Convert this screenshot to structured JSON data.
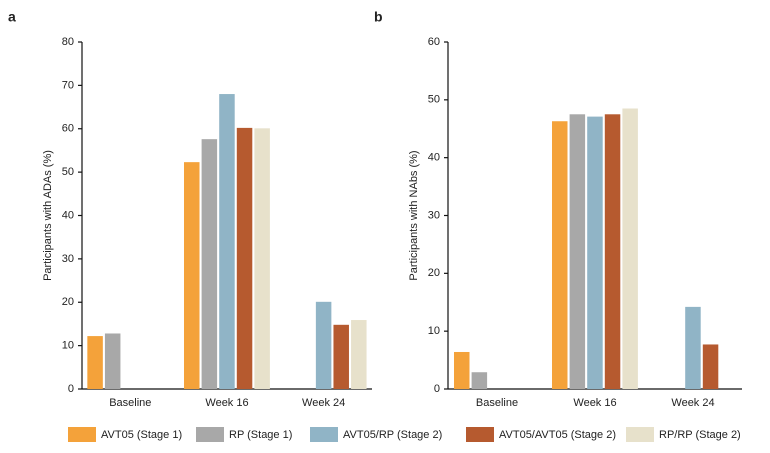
{
  "chart_data": [
    {
      "type": "bar",
      "panel": "a",
      "y_label": "Participants with ADAs (%)",
      "categories": [
        "Baseline",
        "Week 16",
        "Week 24"
      ],
      "ylim": [
        0,
        80
      ],
      "yticks": [
        0,
        10,
        20,
        30,
        40,
        50,
        60,
        70,
        80
      ],
      "series": [
        {
          "values": [
            12.2,
            52.3,
            null
          ]
        },
        {
          "values": [
            12.8,
            57.6,
            null
          ]
        },
        {
          "values": [
            null,
            68.0,
            20.1
          ]
        },
        {
          "values": [
            null,
            60.2,
            14.8
          ]
        },
        {
          "values": [
            null,
            60.1,
            15.9
          ]
        }
      ]
    },
    {
      "type": "bar",
      "panel": "b",
      "y_label": "Participants with NAbs (%)",
      "categories": [
        "Baseline",
        "Week 16",
        "Week 24"
      ],
      "ylim": [
        0,
        60
      ],
      "yticks": [
        0,
        10,
        20,
        30,
        40,
        50,
        60
      ],
      "series": [
        {
          "values": [
            6.4,
            46.3,
            null
          ]
        },
        {
          "values": [
            2.9,
            47.5,
            null
          ]
        },
        {
          "values": [
            null,
            47.1,
            14.2
          ]
        },
        {
          "values": [
            null,
            47.5,
            7.7
          ]
        },
        {
          "values": [
            null,
            48.5,
            null
          ]
        }
      ]
    }
  ],
  "legend": [
    {
      "name": "AVT05 (Stage 1)",
      "color": "#f4a23a"
    },
    {
      "name": "RP (Stage 1)",
      "color": "#a8a8a8"
    },
    {
      "name": "AVT05/RP (Stage 2)",
      "color": "#90b4c6"
    },
    {
      "name": "AVT05/AVT05 (Stage 2)",
      "color": "#b65a2f"
    },
    {
      "name": "RP/RP (Stage 2)",
      "color": "#e7e1cb"
    }
  ]
}
